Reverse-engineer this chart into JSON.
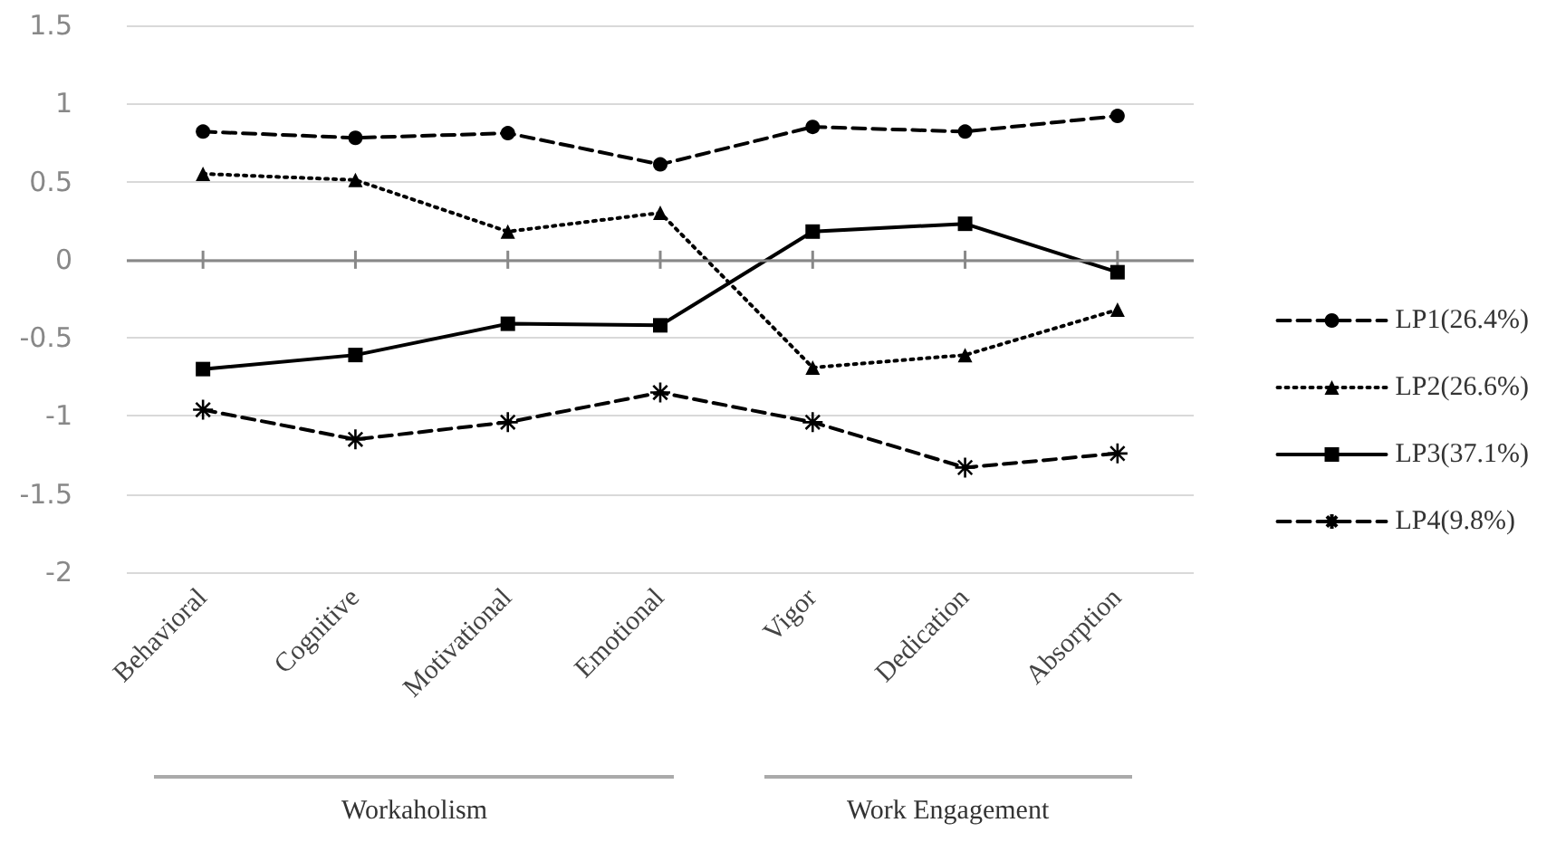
{
  "chart_data": {
    "type": "line",
    "categories": [
      "Behavioral",
      "Cognitive",
      "Motivational",
      "Emotional",
      "Vigor",
      "Dedication",
      "Absorption"
    ],
    "series": [
      {
        "name": "LP1(26.4%)",
        "color": "#000000",
        "marker": "circle",
        "line_style": "dashed",
        "values": [
          0.82,
          0.78,
          0.81,
          0.61,
          0.85,
          0.82,
          0.92
        ]
      },
      {
        "name": "LP2(26.6%)",
        "color": "#000000",
        "marker": "triangle",
        "line_style": "dotted",
        "values": [
          0.55,
          0.51,
          0.18,
          0.3,
          -0.69,
          -0.61,
          -0.32
        ]
      },
      {
        "name": "LP3(37.1%)",
        "color": "#000000",
        "marker": "square",
        "line_style": "solid",
        "values": [
          -0.7,
          -0.61,
          -0.41,
          -0.42,
          0.18,
          0.23,
          -0.08
        ]
      },
      {
        "name": "LP4(9.8%)",
        "color": "#000000",
        "marker": "cross",
        "line_style": "dashed",
        "values": [
          -0.96,
          -1.15,
          -1.04,
          -0.85,
          -1.04,
          -1.33,
          -1.24
        ]
      }
    ],
    "ylim": [
      -2,
      1.5
    ],
    "yticks": [
      -2,
      -1.5,
      -1,
      -0.5,
      0,
      0.5,
      1,
      1.5
    ],
    "grid": "y",
    "legend": "right",
    "annotations": [
      "Workaholism",
      "Work Engagement"
    ]
  }
}
